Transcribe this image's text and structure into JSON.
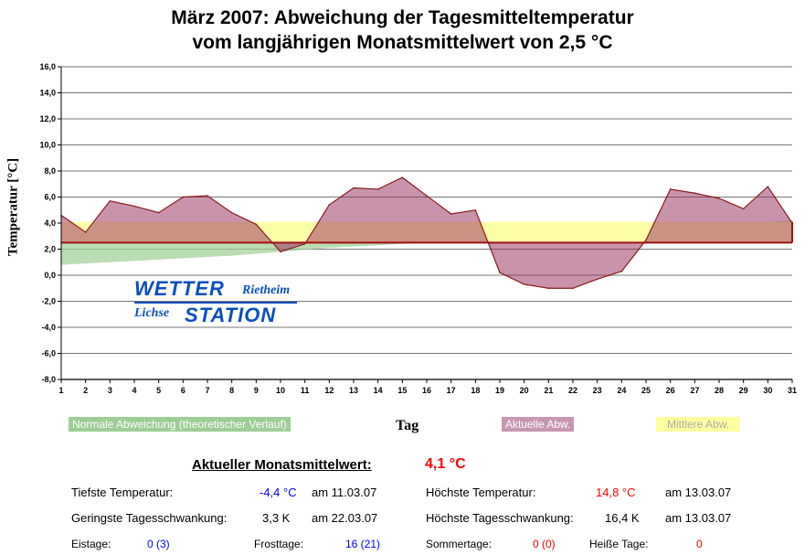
{
  "chart_data": {
    "type": "area",
    "title": [
      "März 2007: Abweichung der Tagesmitteltemperatur",
      "vom langjährigen Monatsmittelwert von 2,5 °C"
    ],
    "xlabel": "Tag",
    "ylabel": "Temperatur [°C]",
    "ylim": [
      -8,
      16
    ],
    "yticks": [
      "-8,0",
      "-6,0",
      "-4,0",
      "-2,0",
      "0,0",
      "2,0",
      "4,0",
      "6,0",
      "8,0",
      "10,0",
      "12,0",
      "14,0",
      "16,0"
    ],
    "x": [
      1,
      2,
      3,
      4,
      5,
      6,
      7,
      8,
      9,
      10,
      11,
      12,
      13,
      14,
      15,
      16,
      17,
      18,
      19,
      20,
      21,
      22,
      23,
      24,
      25,
      26,
      27,
      28,
      29,
      30,
      31
    ],
    "baseline": 2.5,
    "series": [
      {
        "name": "Aktuelle Abw.",
        "color": "#c896b0",
        "values": [
          4.6,
          3.3,
          5.7,
          5.3,
          4.8,
          6.0,
          6.1,
          4.8,
          3.9,
          1.8,
          2.4,
          5.4,
          6.7,
          6.6,
          7.5,
          6.1,
          4.7,
          5.0,
          0.2,
          -0.7,
          -1.0,
          -1.0,
          -0.3,
          0.3,
          2.7,
          6.6,
          6.3,
          5.9,
          5.1,
          6.8,
          4.0
        ]
      },
      {
        "name": "Mittlere Abw.",
        "color": "#ffffa8",
        "value": 4.1
      },
      {
        "name": "Normale Abweichung (theoretischer Verlauf)",
        "color": "#9ccf94",
        "values": [
          0.8,
          0.9,
          1.0,
          1.1,
          1.2,
          1.3,
          1.4,
          1.5,
          1.65,
          1.8,
          1.95,
          2.1,
          2.2,
          2.3,
          2.4,
          2.5,
          2.6,
          2.7,
          2.8,
          2.9,
          3.0,
          3.1,
          3.2,
          3.3,
          3.45,
          3.6,
          3.75,
          3.9,
          4.0,
          4.1,
          4.2
        ]
      }
    ]
  },
  "logo": {
    "line1": "WETTER",
    "line1b": "Rietheim",
    "line2a": "Lichse",
    "line2": "STATION"
  },
  "stats": {
    "mean_label": "Aktueller Monatsmittelwert:",
    "mean_value": "4,1 °C",
    "min_label": "Tiefste Temperatur:",
    "min_value": "-4,4 °C",
    "min_date": "am 11.03.07",
    "max_label": "Höchste Temperatur:",
    "max_value": "14,8 °C",
    "max_date": "am 13.03.07",
    "minrange_label": "Geringste Tagesschwankung:",
    "minrange_value": "3,3 K",
    "minrange_date": "am 22.03.07",
    "maxrange_label": "Höchste Tagesschwankung:",
    "maxrange_value": "16,4 K",
    "maxrange_date": "am 13.03.07",
    "ice_label": "Eistage:",
    "ice_value": "0 (3)",
    "frost_label": "Frosttage:",
    "frost_value": "16 (21)",
    "summer_label": "Sommertage:",
    "summer_value": "0 (0)",
    "hot_label": "Heiße Tage:",
    "hot_value": "0"
  }
}
